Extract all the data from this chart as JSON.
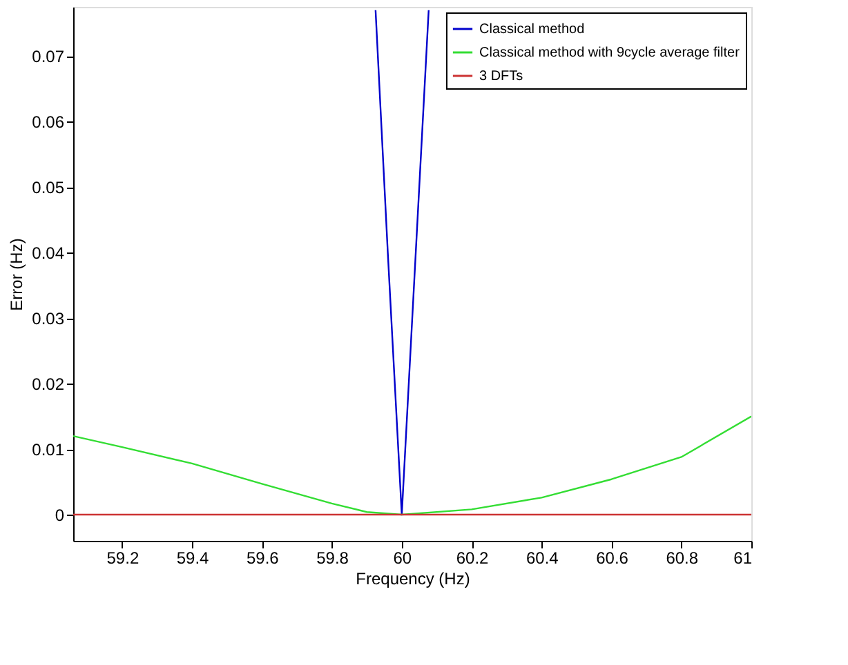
{
  "chart_data": {
    "type": "line",
    "xlabel": "Frequency (Hz)",
    "ylabel": "Error (Hz)",
    "xlim": [
      59.06,
      61
    ],
    "xticks": [
      59.2,
      59.4,
      59.6,
      59.8,
      60,
      60.2,
      60.4,
      60.6,
      60.8,
      61
    ],
    "ylim": [
      -0.004,
      0.0775
    ],
    "yticks": [
      0,
      0.01,
      0.02,
      0.03,
      0.04,
      0.05,
      0.06,
      0.07
    ],
    "grid": false,
    "legend": "top right",
    "marker": "none",
    "line_style": "solid",
    "series": [
      {
        "name": "Classical method",
        "color": "#0000cc",
        "x": [
          59.925,
          59.96,
          60,
          60.04,
          60.077
        ],
        "values": [
          0.077,
          0.04,
          0,
          0.04,
          0.077
        ]
      },
      {
        "name": "Classical method with 9cycle average filter",
        "color": "#33dd33",
        "x": [
          59.06,
          59.2,
          59.4,
          59.6,
          59.8,
          59.9,
          60,
          60.2,
          60.4,
          60.6,
          60.8,
          61
        ],
        "values": [
          0.012,
          0.0103,
          0.0078,
          0.0047,
          0.0017,
          0.0004,
          0,
          0.0008,
          0.0026,
          0.0054,
          0.0088,
          0.015
        ]
      },
      {
        "name": "3 DFTs",
        "color": "#cc3333",
        "x": [
          59.06,
          60,
          61
        ],
        "values": [
          0,
          0,
          0
        ]
      }
    ]
  }
}
